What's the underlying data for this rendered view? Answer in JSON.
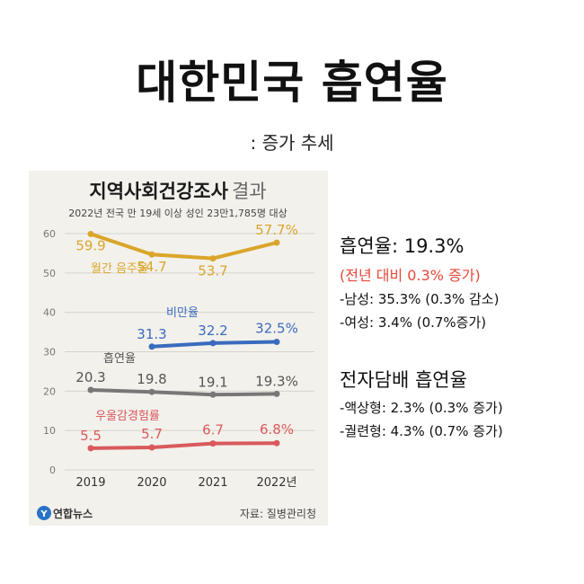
{
  "page": {
    "title": "대한민국 흡연율",
    "subtitle": ": 증가 추세"
  },
  "chart_panel": {
    "title_bold": "지역사회건강조사",
    "title_light": "결과",
    "subtitle": "2022년 전국 만 19세 이상 성인 23만1,785명 대상",
    "logo_text": "연합뉴스",
    "logo_letter": "Y",
    "source": "자료: 질병관리청"
  },
  "chart_data": {
    "type": "line",
    "x": [
      "2019",
      "2020",
      "2021",
      "2022년"
    ],
    "ylim": [
      0,
      60
    ],
    "yticks": [
      0,
      10,
      20,
      30,
      40,
      50,
      60
    ],
    "grid": true,
    "series": [
      {
        "name": "월간 음주율",
        "color": "#d9a62b",
        "values": [
          59.9,
          54.7,
          53.7,
          57.7
        ],
        "labels": [
          "59.9",
          "54.7",
          "53.7",
          "57.7%"
        ]
      },
      {
        "name": "비만율",
        "color": "#3a6bbd",
        "values": [
          null,
          31.3,
          32.2,
          32.5
        ],
        "labels": [
          "",
          "31.3",
          "32.2",
          "32.5%"
        ]
      },
      {
        "name": "흡연율",
        "color": "#777777",
        "values": [
          20.3,
          19.8,
          19.1,
          19.3
        ],
        "labels": [
          "20.3",
          "19.8",
          "19.1",
          "19.3%"
        ]
      },
      {
        "name": "우울감경험률",
        "color": "#d9595c",
        "values": [
          5.5,
          5.7,
          6.7,
          6.8
        ],
        "labels": [
          "5.5",
          "5.7",
          "6.7",
          "6.8%"
        ]
      }
    ]
  },
  "info": {
    "smoking_heading": "흡연율: 19.3%",
    "smoking_change": "(전년 대비 0.3% 증가)",
    "male": "-남성: 35.3% (0.3% 감소)",
    "female": "-여성: 3.4% (0.7%증가)",
    "ecig_heading": "전자담배 흡연율",
    "liquid": "-액상형: 2.3% (0.3% 증가)",
    "cigarette": "-궐련형: 4.3% (0.7% 증가)"
  }
}
